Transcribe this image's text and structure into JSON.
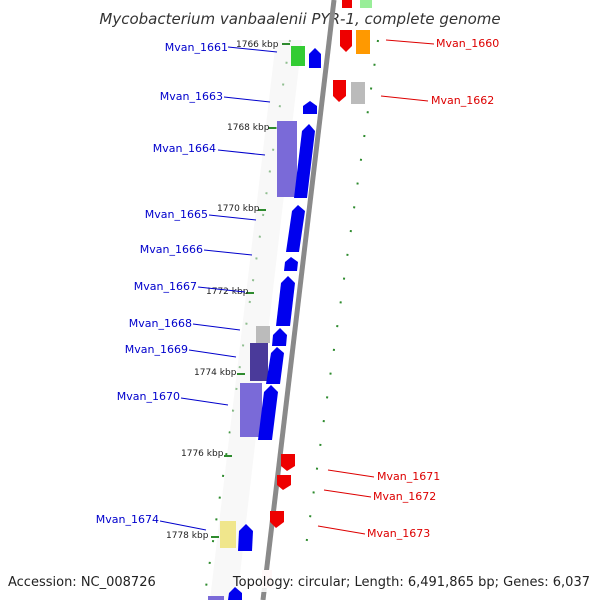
{
  "title": "Mycobacterium vanbaalenii PYR-1, complete genome",
  "footer": {
    "accession": "Accession: NC_008726",
    "topology": "Topology: circular; Length: 6,491,865 bp; Genes: 6,037"
  },
  "colors": {
    "backbone": "#8a8a8a",
    "forward_cds": "#0000ee",
    "reverse_cds": "#ee0000",
    "forward_label": "#0000cc",
    "reverse_label": "#dd0000",
    "tick_green": "#2e8b2e"
  },
  "kbp_labels": [
    "1766 kbp",
    "1768 kbp",
    "1770 kbp",
    "1772 kbp",
    "1774 kbp",
    "1776 kbp",
    "1778 kbp"
  ],
  "forward_labels": [
    "Mvan_1661",
    "Mvan_1663",
    "Mvan_1664",
    "Mvan_1665",
    "Mvan_1666",
    "Mvan_1667",
    "Mvan_1668",
    "Mvan_1669",
    "Mvan_1670",
    "Mvan_1674"
  ],
  "reverse_labels": [
    "Mvan_1660",
    "Mvan_1662",
    "Mvan_1671",
    "Mvan_1672",
    "Mvan_1673"
  ]
}
